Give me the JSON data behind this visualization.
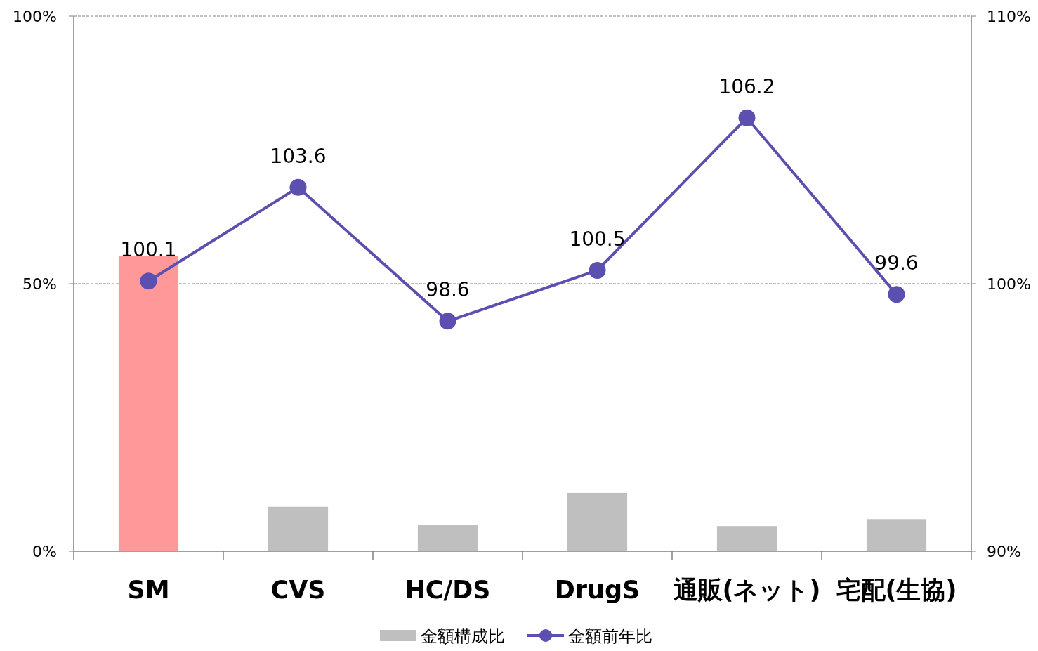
{
  "chart_data": {
    "type": "bar",
    "categories": [
      "SM",
      "CVS",
      "HC/DS",
      "DrugS",
      "通販(ネット)",
      "宅配(生協)"
    ],
    "series": [
      {
        "name": "金額構成比",
        "colors": [
          "#ff9999",
          "#bfbfbf",
          "#bfbfbf",
          "#bfbfbf",
          "#bfbfbf",
          "#bfbfbf"
        ],
        "color": "#bfbfbf",
        "values": [
          55.2,
          8.3,
          4.9,
          10.9,
          4.7,
          6.0
        ]
      },
      {
        "name": "金額前年比",
        "type": "line",
        "axis": "y2",
        "color": "#5b4fb0",
        "marker": "circle",
        "data_labels": true,
        "values": [
          100.1,
          103.6,
          98.6,
          100.5,
          106.2,
          99.6
        ]
      }
    ],
    "ylim": [
      0,
      100
    ],
    "yticks": [
      {
        "value": 0,
        "label": "0%"
      },
      {
        "value": 50,
        "label": "50%"
      },
      {
        "value": 100,
        "label": "100%"
      }
    ],
    "y2lim": [
      90,
      110
    ],
    "y2ticks": [
      {
        "value": 90,
        "label": "90%"
      },
      {
        "value": 100,
        "label": "100%"
      },
      {
        "value": 110,
        "label": "110%"
      }
    ],
    "grid": "y",
    "legend": "bottom"
  }
}
